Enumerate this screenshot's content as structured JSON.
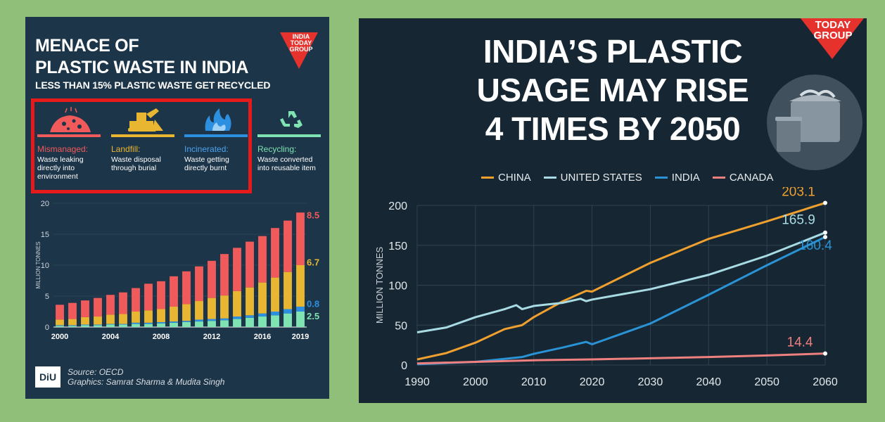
{
  "left": {
    "title_line1": "MENACE OF",
    "title_line2": "PLASTIC WASTE IN INDIA",
    "subtitle": "LESS THAN 15% PLASTIC WASTE GET RECYCLED",
    "logo_line1": "INDIA",
    "logo_line2": "TODAY",
    "logo_line3": "GROUP",
    "categories": [
      {
        "name": "Mismanaged:",
        "desc": "Waste leaking directly into environment",
        "color": "#f05a5b",
        "icon": "waste-pile-icon"
      },
      {
        "name": "Landfill:",
        "desc": "Waste disposal through burial",
        "color": "#e9b631",
        "icon": "bulldozer-icon"
      },
      {
        "name": "Incinerated:",
        "desc": "Waste getting directly burnt",
        "color": "#2d8fe0",
        "icon": "fire-icon"
      },
      {
        "name": "Recycling:",
        "desc": "Waste converted into reusable item",
        "color": "#7fe3b2",
        "icon": "recycle-icon"
      }
    ],
    "source_line1": "Source: OECD",
    "source_line2": "Graphics: Samrat Sharma & Mudita Singh",
    "diu_logo": "DiU"
  },
  "right": {
    "title_line1": "INDIA’S PLASTIC",
    "title_line2": "USAGE MAY RISE",
    "title_line3": "4 TIMES BY 2050",
    "logo_line1": "TODAY",
    "logo_line2": "GROUP",
    "bin_icon": "garbage-bin-icon"
  },
  "chart_data": [
    {
      "type": "bar",
      "stacked": true,
      "ylabel": "MILLION TONNES",
      "ylim": [
        0,
        20
      ],
      "yticks": [
        0,
        5,
        10,
        15,
        20
      ],
      "categories": [
        "2000",
        "2001",
        "2002",
        "2003",
        "2004",
        "2005",
        "2006",
        "2007",
        "2008",
        "2009",
        "2010",
        "2011",
        "2012",
        "2013",
        "2014",
        "2015",
        "2016",
        "2017",
        "2018",
        "2019"
      ],
      "xtick_labels": [
        "2000",
        "2004",
        "2008",
        "2012",
        "2016",
        "2019"
      ],
      "series": [
        {
          "name": "Recycling",
          "color": "#7fe3b2",
          "values": [
            0.2,
            0.2,
            0.3,
            0.3,
            0.4,
            0.4,
            0.5,
            0.5,
            0.6,
            0.7,
            0.8,
            0.9,
            1.0,
            1.1,
            1.3,
            1.5,
            1.7,
            1.9,
            2.2,
            2.5
          ]
        },
        {
          "name": "Incinerated",
          "color": "#2d8fe0",
          "values": [
            0.1,
            0.1,
            0.1,
            0.1,
            0.1,
            0.1,
            0.2,
            0.2,
            0.2,
            0.2,
            0.2,
            0.3,
            0.3,
            0.3,
            0.4,
            0.4,
            0.5,
            0.6,
            0.7,
            0.8
          ]
        },
        {
          "name": "Landfill",
          "color": "#e9b631",
          "values": [
            0.9,
            1.0,
            1.2,
            1.3,
            1.5,
            1.6,
            1.8,
            2.0,
            2.1,
            2.4,
            2.7,
            3.0,
            3.4,
            3.7,
            4.1,
            4.5,
            5.0,
            5.5,
            6.0,
            6.7
          ]
        },
        {
          "name": "Mismanaged",
          "color": "#f05a5b",
          "values": [
            2.4,
            2.6,
            2.7,
            3.0,
            3.2,
            3.5,
            3.8,
            4.3,
            4.5,
            4.9,
            5.3,
            5.6,
            6.0,
            6.7,
            7.0,
            7.4,
            7.5,
            8.0,
            8.3,
            8.5
          ]
        }
      ],
      "end_labels": [
        {
          "text": "8.5",
          "color": "#f05a5b",
          "at": 18.1
        },
        {
          "text": "6.7",
          "color": "#e9b631",
          "at": 10.5
        },
        {
          "text": "0.8",
          "color": "#2d8fe0",
          "at": 3.8
        },
        {
          "text": "2.5",
          "color": "#7fe3b2",
          "at": 1.8
        }
      ]
    },
    {
      "type": "line",
      "ylabel": "MILLION TONNES",
      "xlim": [
        1990,
        2060
      ],
      "ylim": [
        0,
        200
      ],
      "xticks": [
        1990,
        2000,
        2010,
        2020,
        2030,
        2040,
        2050,
        2060
      ],
      "yticks": [
        0,
        50,
        100,
        150,
        200
      ],
      "series": [
        {
          "name": "CHINA",
          "color": "#f0a02e",
          "x": [
            1990,
            1995,
            2000,
            2005,
            2008,
            2010,
            2015,
            2019,
            2020,
            2030,
            2040,
            2050,
            2060
          ],
          "y": [
            7,
            15,
            28,
            45,
            50,
            60,
            80,
            93,
            92,
            128,
            158,
            180,
            203.1
          ],
          "end_label": "203.1"
        },
        {
          "name": "UNITED STATES",
          "color": "#a9dbe4",
          "x": [
            1990,
            1995,
            2000,
            2005,
            2007,
            2008,
            2010,
            2015,
            2018,
            2019,
            2020,
            2030,
            2040,
            2050,
            2060
          ],
          "y": [
            41,
            47,
            60,
            70,
            75,
            70,
            74,
            78,
            83,
            80,
            82,
            95,
            113,
            137,
            165.9
          ],
          "end_label": "165.9"
        },
        {
          "name": "INDIA",
          "color": "#2a93d5",
          "x": [
            1990,
            2000,
            2008,
            2010,
            2015,
            2019,
            2020,
            2030,
            2040,
            2050,
            2060
          ],
          "y": [
            1,
            4,
            10,
            14,
            22,
            29,
            26,
            52,
            88,
            125,
            160.4
          ],
          "end_label": "160.4"
        },
        {
          "name": "CANADA",
          "color": "#f07f7f",
          "x": [
            1990,
            2000,
            2010,
            2020,
            2030,
            2040,
            2050,
            2060
          ],
          "y": [
            2,
            4,
            6,
            7,
            8.5,
            10,
            12,
            14.4
          ],
          "end_label": "14.4"
        }
      ]
    }
  ]
}
